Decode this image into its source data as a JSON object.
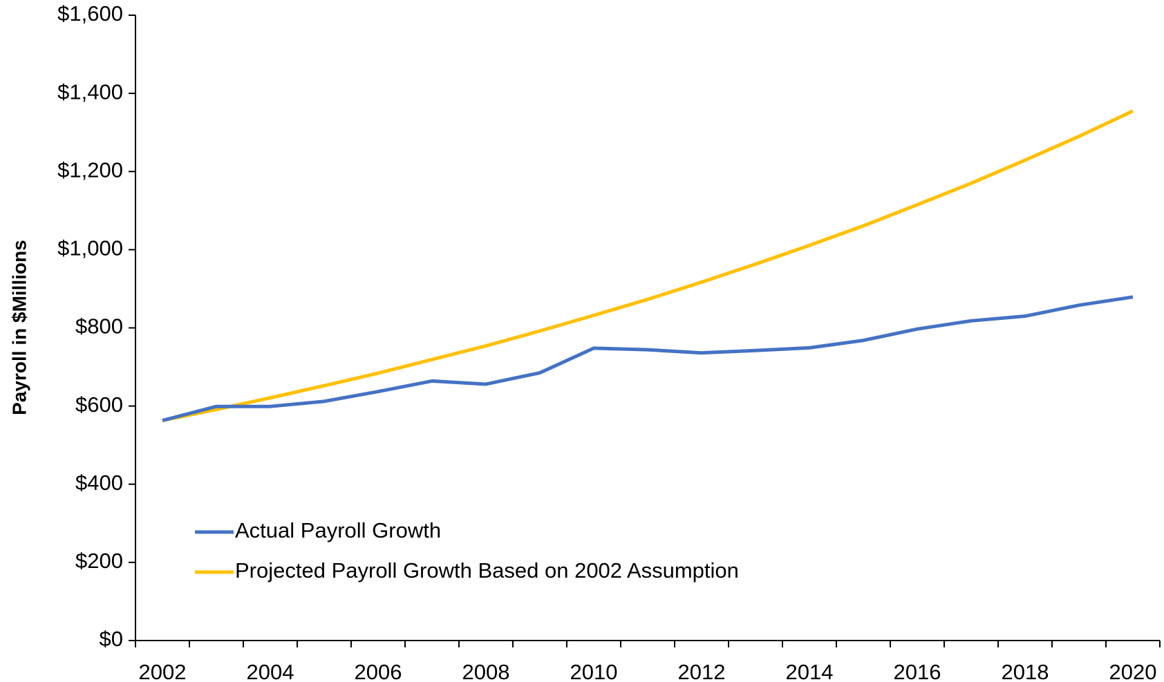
{
  "chart_data": {
    "type": "line",
    "y_label": "Payroll in $Millions",
    "categories": [
      "2002",
      null,
      "2004",
      null,
      "2006",
      null,
      "2008",
      null,
      "2010",
      null,
      "2012",
      null,
      "2014",
      null,
      "2016",
      null,
      "2018",
      null,
      "2020"
    ],
    "series": [
      {
        "name": "Actual Payroll Growth",
        "color": "#4472c4",
        "values": [
          563,
          599,
          599,
          612,
          637,
          664,
          656,
          685,
          748,
          744,
          736,
          742,
          749,
          768,
          797,
          818,
          830,
          858,
          879
        ]
      },
      {
        "name": "Projected Payroll Growth Based on 2002 Assumption",
        "color": "#ffc000",
        "values": [
          563,
          591,
          621,
          652,
          684,
          719,
          754,
          792,
          832,
          873,
          917,
          963,
          1011,
          1061,
          1115,
          1170,
          1229,
          1290,
          1355
        ]
      }
    ],
    "ylim": [
      0,
      1600
    ],
    "yticks": [
      {
        "value": 0,
        "label": "$0"
      },
      {
        "value": 200,
        "label": "$200"
      },
      {
        "value": 400,
        "label": "$400"
      },
      {
        "value": 600,
        "label": "$600"
      },
      {
        "value": 800,
        "label": "$800"
      },
      {
        "value": 1000,
        "label": "$1,000"
      },
      {
        "value": 1200,
        "label": "$1,200"
      },
      {
        "value": 1400,
        "label": "$1,400"
      },
      {
        "value": 1600,
        "label": "$1,600"
      }
    ],
    "grid": false,
    "legend": "lower left"
  }
}
